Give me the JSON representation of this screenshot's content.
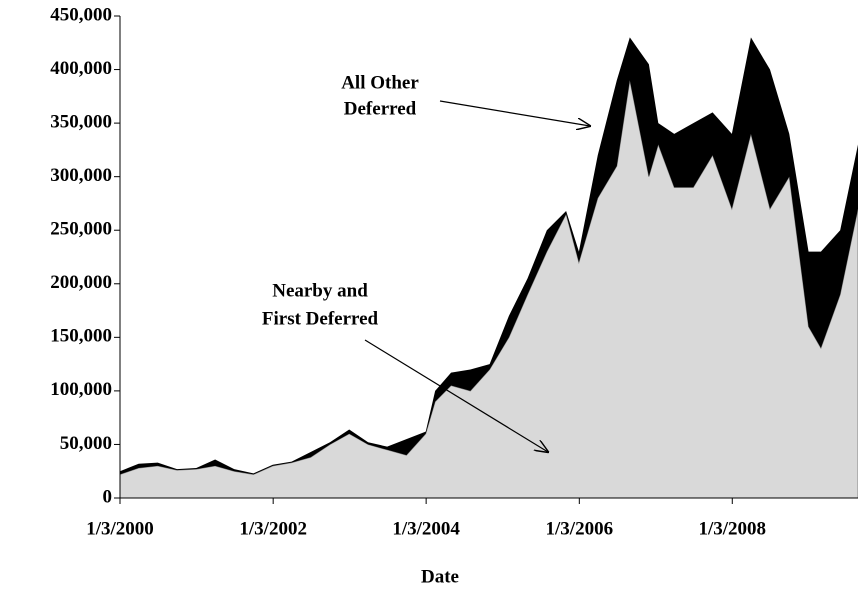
{
  "chart_data": {
    "type": "stacked-area",
    "x_label": "Date",
    "x": [
      "2000-01-03",
      "2000-04-01",
      "2000-07-01",
      "2000-10-01",
      "2001-01-01",
      "2001-04-01",
      "2001-07-01",
      "2001-10-01",
      "2002-01-01",
      "2002-04-01",
      "2002-07-01",
      "2002-10-01",
      "2003-01-01",
      "2003-04-01",
      "2003-07-01",
      "2003-10-01",
      "2004-01-01",
      "2004-02-15",
      "2004-05-01",
      "2004-08-01",
      "2004-11-01",
      "2005-02-01",
      "2005-05-01",
      "2005-08-01",
      "2005-11-01",
      "2006-01-01",
      "2006-04-01",
      "2006-07-01",
      "2006-09-01",
      "2006-12-01",
      "2007-01-15",
      "2007-04-01",
      "2007-07-01",
      "2007-10-01",
      "2008-01-01",
      "2008-04-01",
      "2008-07-01",
      "2008-10-01",
      "2009-01-01",
      "2009-03-01",
      "2009-06-01",
      "2009-08-25"
    ],
    "series": [
      {
        "color": "#d9d9d9",
        "values": [
          22000,
          28000,
          30000,
          26000,
          27000,
          30000,
          25000,
          22000,
          30000,
          33000,
          38000,
          50000,
          60000,
          50000,
          45000,
          40000,
          60000,
          90000,
          105000,
          100000,
          120000,
          150000,
          190000,
          230000,
          265000,
          220000,
          280000,
          310000,
          390000,
          300000,
          330000,
          290000,
          290000,
          320000,
          270000,
          340000,
          270000,
          300000,
          160000,
          140000,
          190000,
          270000
        ]
      },
      {
        "color": "#000000",
        "values": [
          3000,
          4000,
          3000,
          1000,
          1000,
          6000,
          2000,
          1000,
          1000,
          1000,
          5000,
          2000,
          4000,
          2000,
          3000,
          15000,
          2000,
          10000,
          12000,
          20000,
          5000,
          20000,
          15000,
          20000,
          3000,
          10000,
          40000,
          80000,
          40000,
          105000,
          20000,
          50000,
          60000,
          40000,
          70000,
          90000,
          130000,
          40000,
          70000,
          90000,
          60000,
          60000
        ]
      }
    ],
    "annotations": [
      {
        "lines": [
          "All Other",
          "Deferred"
        ]
      },
      {
        "lines": [
          "Nearby and",
          "First Deferred"
        ]
      }
    ],
    "xlim": [
      "2000-01-03",
      "2009-08-25"
    ],
    "xticks": [
      {
        "value": "2000-01-03",
        "label": "1/3/2000"
      },
      {
        "value": "2002-01-03",
        "label": "1/3/2002"
      },
      {
        "value": "2004-01-03",
        "label": "1/3/2004"
      },
      {
        "value": "2006-01-03",
        "label": "1/3/2006"
      },
      {
        "value": "2008-01-03",
        "label": "1/3/2008"
      }
    ],
    "ylim": [
      0,
      450000
    ],
    "yticks": [
      0,
      {
        "value": 50000,
        "label": "50,000"
      },
      {
        "value": 100000,
        "label": "100,000"
      },
      {
        "value": 150000,
        "label": "150,000"
      },
      {
        "value": 200000,
        "label": "200,000"
      },
      {
        "value": 250000,
        "label": "250,000"
      },
      {
        "value": 300000,
        "label": "300,000"
      },
      {
        "value": 350000,
        "label": "350,000"
      },
      {
        "value": 400000,
        "label": "400,000"
      },
      {
        "value": 450000,
        "label": "450,000"
      }
    ]
  }
}
